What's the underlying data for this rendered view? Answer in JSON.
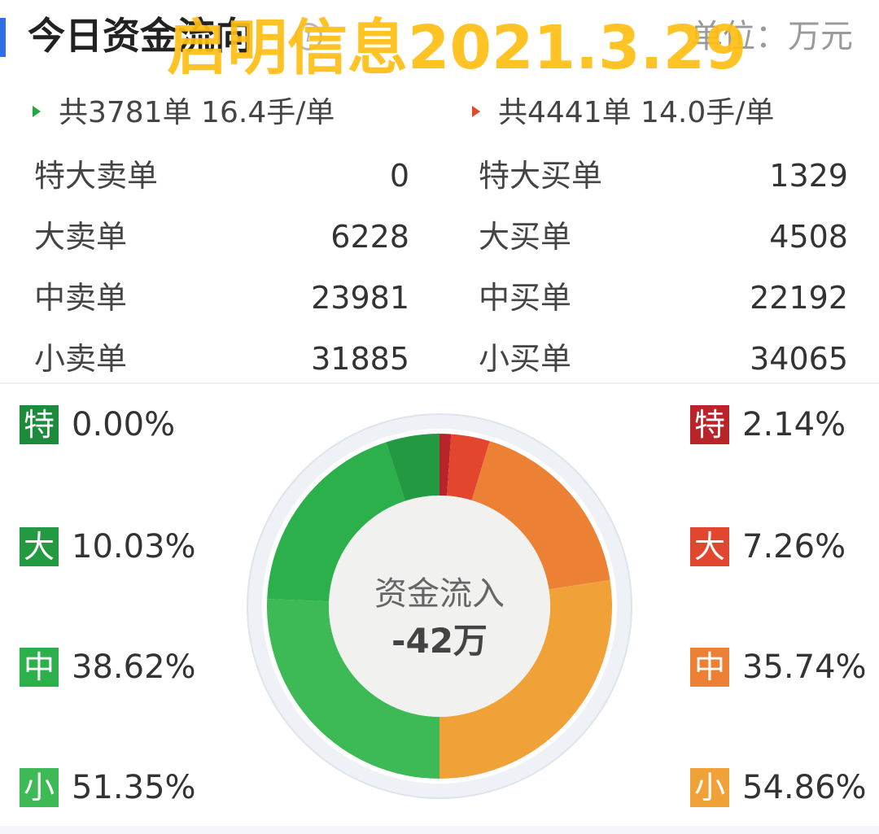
{
  "header": {
    "title": "今日资金流向",
    "info_icon": "info-circle-icon",
    "unit": "单位：万元",
    "accent_color": "#2f6fe6"
  },
  "watermark": "启明信息2021.3.29",
  "summary": {
    "sell": "共3781单 16.4手/单",
    "buy": "共4441单 14.0手/单"
  },
  "table": {
    "sell": [
      {
        "label": "特大卖单",
        "value": "0"
      },
      {
        "label": "大卖单",
        "value": "6228"
      },
      {
        "label": "中卖单",
        "value": "23981"
      },
      {
        "label": "小卖单",
        "value": "31885"
      }
    ],
    "buy": [
      {
        "label": "特大买单",
        "value": "1329"
      },
      {
        "label": "大买单",
        "value": "4508"
      },
      {
        "label": "中买单",
        "value": "22192"
      },
      {
        "label": "小买单",
        "value": "34065"
      }
    ]
  },
  "legend": {
    "sell": [
      {
        "badge": "特",
        "pct": "0.00%",
        "color": "#1e8a3c"
      },
      {
        "badge": "大",
        "pct": "10.03%",
        "color": "#239a42"
      },
      {
        "badge": "中",
        "pct": "38.62%",
        "color": "#2bb04c"
      },
      {
        "badge": "小",
        "pct": "51.35%",
        "color": "#3dba56"
      }
    ],
    "buy": [
      {
        "badge": "特",
        "pct": "2.14%",
        "color": "#b8242a"
      },
      {
        "badge": "大",
        "pct": "7.26%",
        "color": "#e2462f"
      },
      {
        "badge": "中",
        "pct": "35.74%",
        "color": "#ec8035"
      },
      {
        "badge": "小",
        "pct": "54.86%",
        "color": "#f0a238"
      }
    ]
  },
  "center": {
    "label": "资金流入",
    "value": "-42万"
  },
  "chart_data": {
    "type": "pie",
    "categories": [
      "特大买单",
      "大买单",
      "中买单",
      "小买单",
      "小卖单",
      "中卖单",
      "大卖单",
      "特大卖单"
    ],
    "values": [
      1329,
      4508,
      22192,
      34065,
      31885,
      23981,
      6228,
      0
    ],
    "colors": [
      "#b8242a",
      "#e2462f",
      "#ec8035",
      "#f0a238",
      "#3dba56",
      "#2bb04c",
      "#239a42",
      "#1e8a3c"
    ],
    "donut": true
  }
}
